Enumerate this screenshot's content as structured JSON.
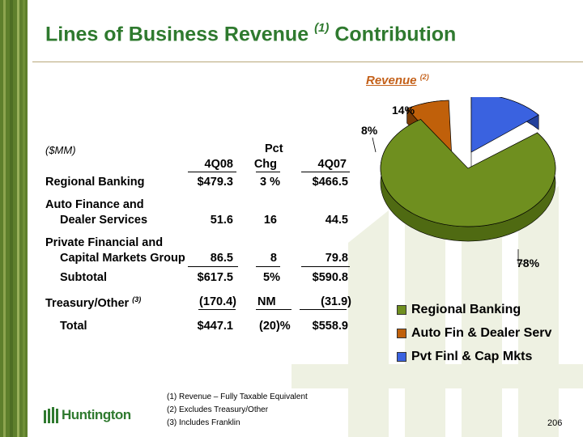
{
  "title": "Lines of Business Revenue",
  "title_sup": "(1)",
  "title_suffix": "Contribution",
  "units": "($MM)",
  "columns": {
    "pct_line1": "Pct",
    "c1": "4Q08",
    "c2": "Chg",
    "c3": "4Q07"
  },
  "rows": [
    {
      "label1": "Regional Banking",
      "label2": "",
      "v1": "$479.3",
      "v2": "3 %",
      "v3": "$466.5"
    },
    {
      "label1": "Auto Finance and",
      "label2": "Dealer Services",
      "v1": "51.6",
      "v2": "16",
      "v3": "44.5"
    },
    {
      "label1": "Private Financial and",
      "label2": "Capital Markets Group",
      "v1": "86.5",
      "v2": "8",
      "v3": "79.8"
    },
    {
      "label1": "Subtotal",
      "label2": "",
      "v1": "$617.5",
      "v2": "5%",
      "v3": "$590.8"
    },
    {
      "label1": "Treasury/Other",
      "label2": "",
      "sup": "(3)",
      "v1": "(170.4)",
      "v2": "NM",
      "v3": "(31.9)"
    },
    {
      "label1": "Total",
      "label2": "",
      "v1": "$447.1",
      "v2": "(20)%",
      "v3": "$558.9"
    }
  ],
  "footnotes": [
    "(1)  Revenue – Fully Taxable Equivalent",
    "(2)  Excludes Treasury/Other",
    "(3)  Includes Franklin"
  ],
  "logo_text": "Huntington",
  "page_number": "206",
  "colors": {
    "title": "#2f7a2f",
    "accent": "#c4611a",
    "regional": "#6f8f1f",
    "auto": "#c0600a",
    "pvt": "#3a62e0"
  },
  "chart_data": {
    "type": "pie",
    "title": "Revenue",
    "title_sup": "(2)",
    "slices": [
      {
        "name": "Regional Banking",
        "value": 78,
        "label": "78%"
      },
      {
        "name": "Auto Fin & Dealer Serv",
        "value": 8,
        "label": "8%"
      },
      {
        "name": "Pvt Finl & Cap Mkts",
        "value": 14,
        "label": "14%"
      }
    ],
    "legend": "bottom-right"
  }
}
